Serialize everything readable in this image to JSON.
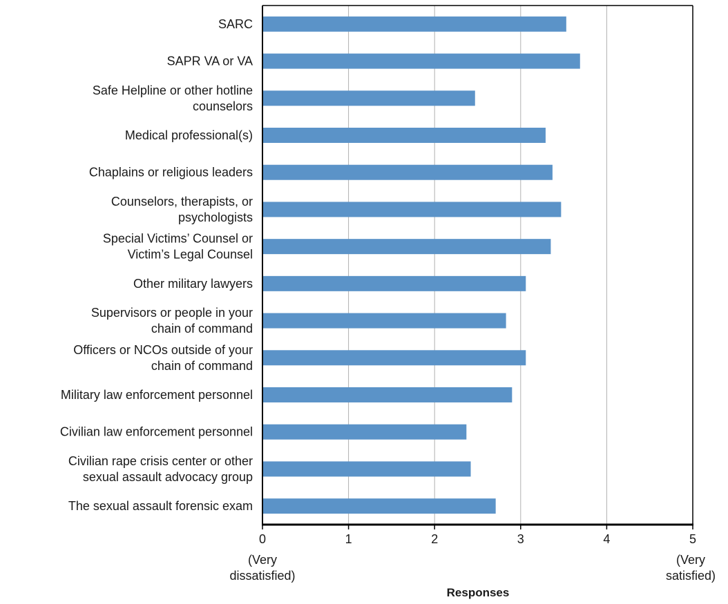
{
  "chart_data": {
    "type": "bar",
    "orientation": "horizontal",
    "categories": [
      [
        "SARC"
      ],
      [
        "SAPR VA or VA"
      ],
      [
        "Safe Helpline or other hotline",
        "counselors"
      ],
      [
        "Medical professional(s)"
      ],
      [
        "Chaplains or religious leaders"
      ],
      [
        "Counselors, therapists, or",
        "psychologists"
      ],
      [
        "Special Victims’ Counsel or",
        "Victim’s Legal Counsel"
      ],
      [
        "Other military lawyers"
      ],
      [
        "Supervisors or people in your",
        "chain of command"
      ],
      [
        "Officers or NCOs outside of your",
        "chain of command"
      ],
      [
        "Military law enforcement personnel"
      ],
      [
        "Civilian law enforcement personnel"
      ],
      [
        "Civilian rape crisis center or other",
        "sexual assault advocacy group"
      ],
      [
        "The sexual assault forensic exam"
      ]
    ],
    "values": [
      3.53,
      3.69,
      2.47,
      3.29,
      3.37,
      3.47,
      3.35,
      3.06,
      2.83,
      3.06,
      2.9,
      2.37,
      2.42,
      2.71
    ],
    "xlim": [
      0,
      5
    ],
    "xticks": [
      "0",
      "1",
      "2",
      "3",
      "4",
      "5"
    ],
    "xlabel": "Responses",
    "low_end_label": [
      "(Very",
      "dissatisfied)"
    ],
    "high_end_label": [
      "(Very",
      "satisfied)"
    ],
    "grid": "vertical",
    "bar_color": "#5b93c8",
    "grid_color": "#b0b0b0",
    "axis_color": "#000000"
  }
}
